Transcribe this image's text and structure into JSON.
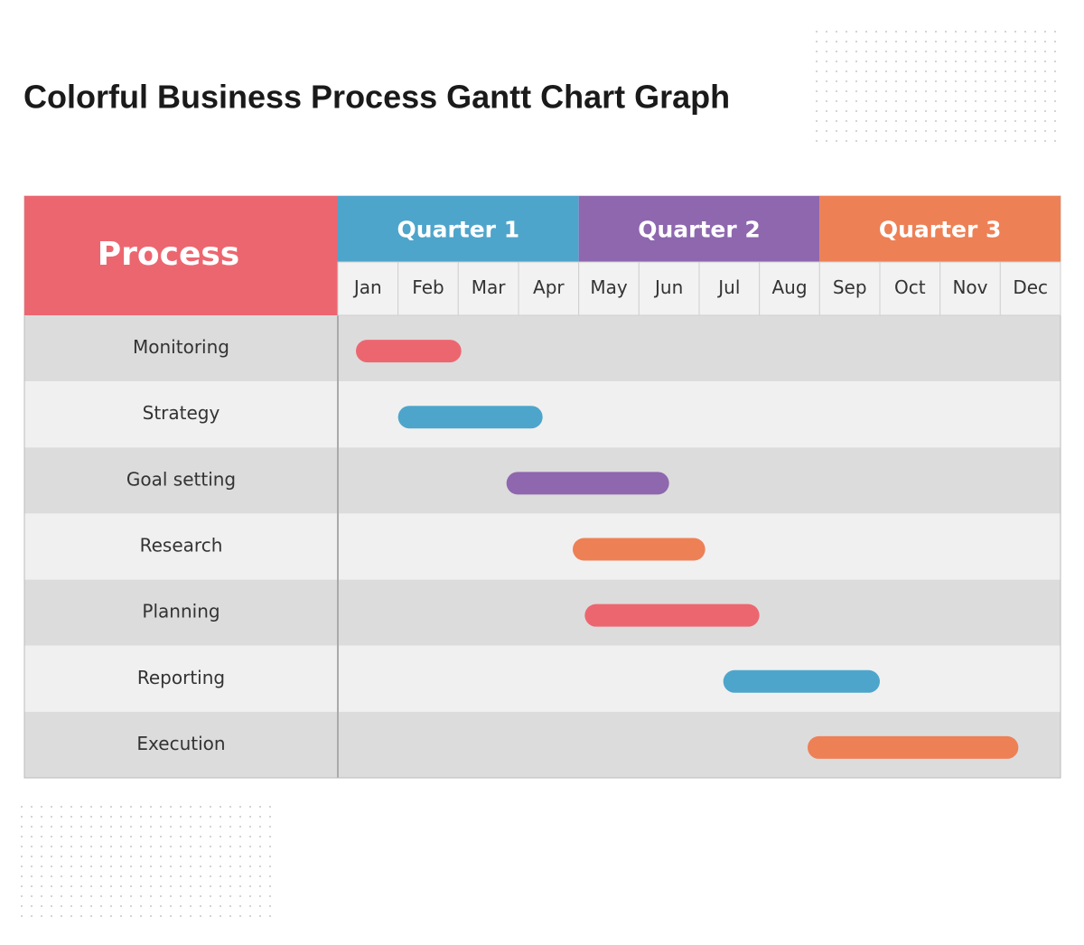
{
  "chart_data": {
    "type": "gantt",
    "title": "Colorful Business Process Gantt Chart Graph",
    "header": "Process",
    "quarters": [
      {
        "name": "Quarter 1",
        "color": "#4ea5cb"
      },
      {
        "name": "Quarter 2",
        "color": "#8e67af"
      },
      {
        "name": "Quarter 3",
        "color": "#ee8055"
      }
    ],
    "header_color": "#ec6670",
    "categories": [
      "Jan",
      "Feb",
      "Mar",
      "Apr",
      "May",
      "Jun",
      "Jul",
      "Aug",
      "Sep",
      "Oct",
      "Nov",
      "Dec"
    ],
    "xlim": [
      0,
      12
    ],
    "tasks": [
      {
        "name": "Monitoring",
        "start": 0.3,
        "end": 2.05,
        "color": "#ec6670"
      },
      {
        "name": "Strategy",
        "start": 1.0,
        "end": 3.4,
        "color": "#4ea5cb"
      },
      {
        "name": "Goal setting",
        "start": 2.8,
        "end": 5.5,
        "color": "#8e67af"
      },
      {
        "name": "Research",
        "start": 3.9,
        "end": 6.1,
        "color": "#ee8055"
      },
      {
        "name": "Planning",
        "start": 4.1,
        "end": 7.0,
        "color": "#ec6670"
      },
      {
        "name": "Reporting",
        "start": 6.4,
        "end": 9.0,
        "color": "#4ea5cb"
      },
      {
        "name": "Execution",
        "start": 7.8,
        "end": 11.3,
        "color": "#ee8055"
      }
    ]
  }
}
